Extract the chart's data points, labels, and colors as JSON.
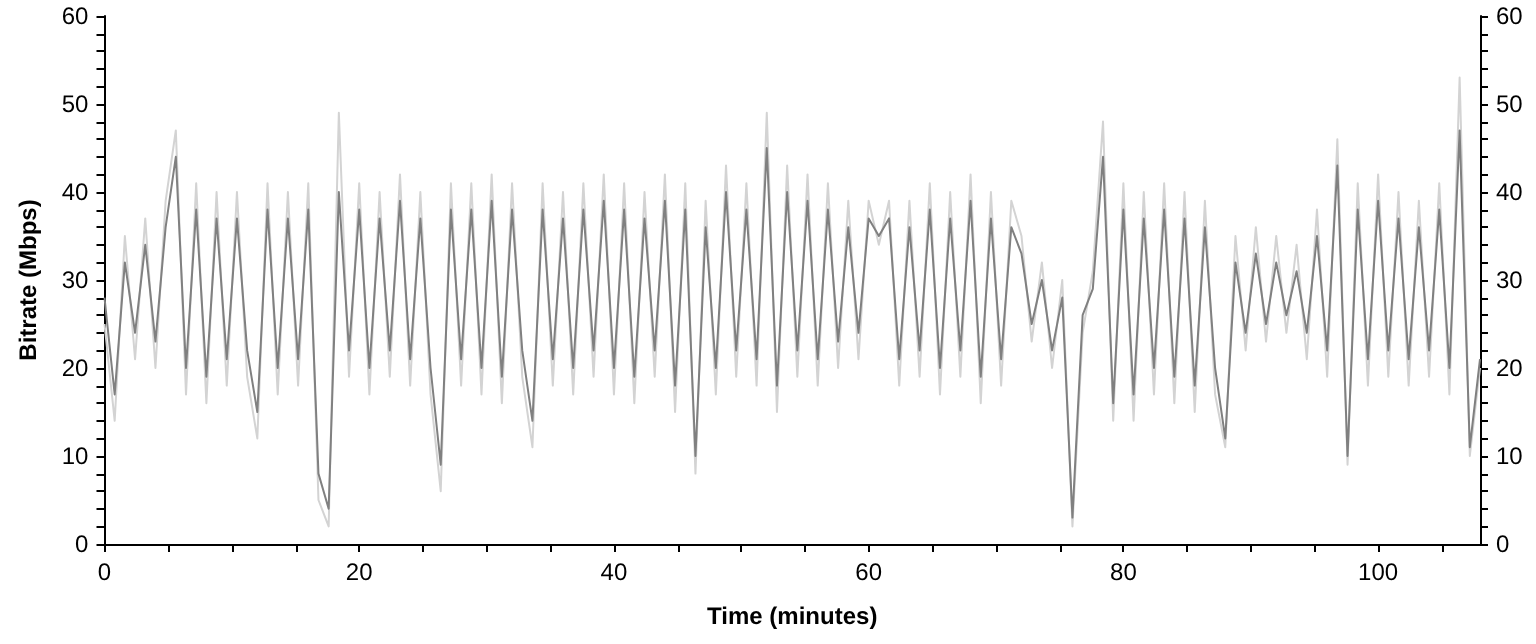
{
  "chart_data": {
    "type": "line",
    "xlabel": "Time (minutes)",
    "ylabel": "Bitrate (Mbps)",
    "x": [
      0,
      0.8,
      1.6,
      2.4,
      3.2,
      4,
      4.8,
      5.6,
      6.4,
      7.2,
      8,
      8.8,
      9.6,
      10.4,
      11.2,
      12,
      12.8,
      13.6,
      14.4,
      15.2,
      16,
      16.8,
      17.6,
      18.4,
      19.2,
      20,
      20.8,
      21.6,
      22.4,
      23.2,
      24,
      24.8,
      25.6,
      26.4,
      27.2,
      28,
      28.8,
      29.6,
      30.4,
      31.2,
      32,
      32.8,
      33.6,
      34.4,
      35.2,
      36,
      36.8,
      37.6,
      38.4,
      39.2,
      40,
      40.8,
      41.6,
      42.4,
      43.2,
      44,
      44.8,
      45.6,
      46.4,
      47.2,
      48,
      48.8,
      49.6,
      50.4,
      51.2,
      52,
      52.8,
      53.6,
      54.4,
      55.2,
      56,
      56.8,
      57.6,
      58.4,
      59.2,
      60,
      60.8,
      61.6,
      62.4,
      63.2,
      64,
      64.8,
      65.6,
      66.4,
      67.2,
      68,
      68.8,
      69.6,
      70.4,
      71.2,
      72,
      72.8,
      73.6,
      74.4,
      75.2,
      76,
      76.8,
      77.6,
      78.4,
      79.2,
      80,
      80.8,
      81.6,
      82.4,
      83.2,
      84,
      84.8,
      85.6,
      86.4,
      87.2,
      88,
      88.8,
      89.6,
      90.4,
      91.2,
      92,
      92.8,
      93.6,
      94.4,
      95.2,
      96,
      96.8,
      97.6,
      98.4,
      99.2,
      100,
      100.8,
      101.6,
      102.4,
      103.2,
      104,
      104.8,
      105.6,
      106.4,
      107.2,
      108
    ],
    "series": [
      {
        "color": "#d3d3d3",
        "values": [
          25,
          14,
          35,
          21,
          37,
          20,
          39,
          47,
          17,
          41,
          16,
          40,
          18,
          40,
          19,
          12,
          41,
          17,
          40,
          18,
          41,
          5,
          2,
          49,
          19,
          41,
          17,
          40,
          19,
          42,
          18,
          40,
          17,
          6,
          41,
          18,
          41,
          17,
          42,
          16,
          41,
          19,
          11,
          41,
          18,
          40,
          17,
          41,
          19,
          42,
          17,
          41,
          16,
          40,
          19,
          42,
          15,
          41,
          8,
          39,
          17,
          43,
          19,
          41,
          18,
          49,
          15,
          43,
          19,
          42,
          18,
          41,
          20,
          39,
          21,
          39,
          34,
          39,
          18,
          39,
          19,
          41,
          17,
          40,
          19,
          42,
          16,
          40,
          18,
          39,
          35,
          23,
          32,
          20,
          30,
          2,
          24,
          31,
          48,
          14,
          41,
          14,
          40,
          17,
          41,
          16,
          40,
          15,
          39,
          17,
          11,
          35,
          22,
          36,
          23,
          35,
          24,
          34,
          21,
          38,
          19,
          46,
          9,
          41,
          18,
          42,
          19,
          40,
          18,
          39,
          19,
          41,
          17,
          53,
          10,
          20
        ]
      },
      {
        "color": "#808080",
        "values": [
          28,
          17,
          32,
          24,
          34,
          23,
          36,
          44,
          20,
          38,
          19,
          37,
          21,
          37,
          22,
          15,
          38,
          20,
          37,
          21,
          38,
          8,
          4,
          40,
          22,
          38,
          20,
          37,
          22,
          39,
          21,
          37,
          20,
          9,
          38,
          21,
          38,
          20,
          39,
          19,
          38,
          22,
          14,
          38,
          21,
          37,
          20,
          38,
          22,
          39,
          20,
          38,
          19,
          37,
          22,
          39,
          18,
          38,
          10,
          36,
          20,
          40,
          22,
          38,
          21,
          45,
          18,
          40,
          22,
          39,
          21,
          38,
          23,
          36,
          24,
          37,
          35,
          37,
          21,
          36,
          22,
          38,
          20,
          37,
          22,
          39,
          19,
          37,
          21,
          36,
          33,
          25,
          30,
          22,
          28,
          3,
          26,
          29,
          44,
          16,
          38,
          17,
          37,
          20,
          38,
          19,
          37,
          18,
          36,
          20,
          12,
          32,
          24,
          33,
          25,
          32,
          26,
          31,
          24,
          35,
          22,
          43,
          10,
          38,
          21,
          39,
          22,
          37,
          21,
          36,
          22,
          38,
          20,
          47,
          11,
          21
        ]
      }
    ],
    "xlim": [
      0,
      108
    ],
    "xticks": [
      0,
      {
        "value": 5,
        "label": null
      },
      {
        "value": 10,
        "label": null
      },
      {
        "value": 15,
        "label": null
      },
      20,
      {
        "value": 25,
        "label": null
      },
      {
        "value": 30,
        "label": null
      },
      {
        "value": 35,
        "label": null
      },
      40,
      {
        "value": 45,
        "label": null
      },
      {
        "value": 50,
        "label": null
      },
      {
        "value": 55,
        "label": null
      },
      60,
      {
        "value": 65,
        "label": null
      },
      {
        "value": 70,
        "label": null
      },
      {
        "value": 75,
        "label": null
      },
      80,
      {
        "value": 85,
        "label": null
      },
      {
        "value": 90,
        "label": null
      },
      {
        "value": 95,
        "label": null
      },
      100,
      {
        "value": 105,
        "label": null
      }
    ],
    "ylim": [
      0,
      60
    ],
    "yticks": [
      0,
      {
        "value": 2,
        "label": null
      },
      {
        "value": 4,
        "label": null
      },
      {
        "value": 6,
        "label": null
      },
      {
        "value": 8,
        "label": null
      },
      10,
      {
        "value": 12,
        "label": null
      },
      {
        "value": 14,
        "label": null
      },
      {
        "value": 16,
        "label": null
      },
      {
        "value": 18,
        "label": null
      },
      20,
      {
        "value": 22,
        "label": null
      },
      {
        "value": 24,
        "label": null
      },
      {
        "value": 26,
        "label": null
      },
      {
        "value": 28,
        "label": null
      },
      30,
      {
        "value": 32,
        "label": null
      },
      {
        "value": 34,
        "label": null
      },
      {
        "value": 36,
        "label": null
      },
      {
        "value": 38,
        "label": null
      },
      40,
      {
        "value": 42,
        "label": null
      },
      {
        "value": 44,
        "label": null
      },
      {
        "value": 46,
        "label": null
      },
      {
        "value": 48,
        "label": null
      },
      50,
      {
        "value": 52,
        "label": null
      },
      {
        "value": 54,
        "label": null
      },
      {
        "value": 56,
        "label": null
      },
      {
        "value": 58,
        "label": null
      },
      60
    ],
    "y2lim": [
      0,
      60
    ],
    "y2ticks": [
      0,
      {
        "value": 2,
        "label": null
      },
      {
        "value": 4,
        "label": null
      },
      {
        "value": 6,
        "label": null
      },
      {
        "value": 8,
        "label": null
      },
      10,
      {
        "value": 12,
        "label": null
      },
      {
        "value": 14,
        "label": null
      },
      {
        "value": 16,
        "label": null
      },
      {
        "value": 18,
        "label": null
      },
      20,
      {
        "value": 22,
        "label": null
      },
      {
        "value": 24,
        "label": null
      },
      {
        "value": 26,
        "label": null
      },
      {
        "value": 28,
        "label": null
      },
      30,
      {
        "value": 32,
        "label": null
      },
      {
        "value": 34,
        "label": null
      },
      {
        "value": 36,
        "label": null
      },
      {
        "value": 38,
        "label": null
      },
      40,
      {
        "value": 42,
        "label": null
      },
      {
        "value": 44,
        "label": null
      },
      {
        "value": 46,
        "label": null
      },
      {
        "value": 48,
        "label": null
      },
      50,
      {
        "value": 52,
        "label": null
      },
      {
        "value": 54,
        "label": null
      },
      {
        "value": 56,
        "label": null
      },
      {
        "value": 58,
        "label": null
      },
      60
    ],
    "grid": false,
    "marker": "none",
    "line_style": "solid"
  }
}
